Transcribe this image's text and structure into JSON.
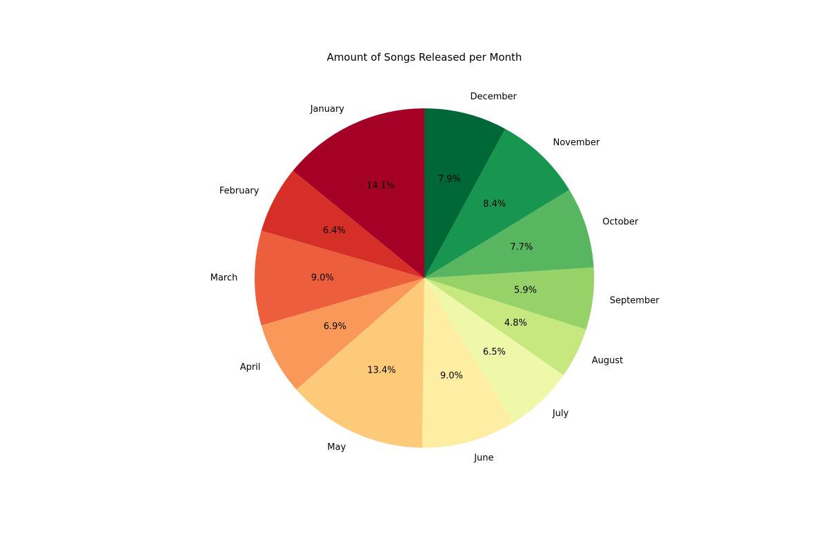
{
  "chart_data": {
    "type": "pie",
    "title": "Amount of Songs Released per Month",
    "categories": [
      "January",
      "February",
      "March",
      "April",
      "May",
      "June",
      "July",
      "August",
      "September",
      "October",
      "November",
      "December"
    ],
    "values": [
      14.1,
      6.4,
      9.0,
      6.9,
      13.4,
      9.0,
      6.5,
      4.8,
      5.9,
      7.7,
      8.4,
      7.9
    ],
    "value_labels": [
      "14.1%",
      "6.4%",
      "9.0%",
      "6.9%",
      "13.4%",
      "9.0%",
      "6.5%",
      "4.8%",
      "5.9%",
      "7.7%",
      "8.4%",
      "7.9%"
    ],
    "colors": [
      "#a50026",
      "#d62f27",
      "#ed5f3c",
      "#f99858",
      "#fdca79",
      "#feeea2",
      "#eef8a8",
      "#c7e77f",
      "#96d268",
      "#57b65f",
      "#18954f",
      "#006837"
    ],
    "start": "top, counterclockwise",
    "legend": "none"
  }
}
